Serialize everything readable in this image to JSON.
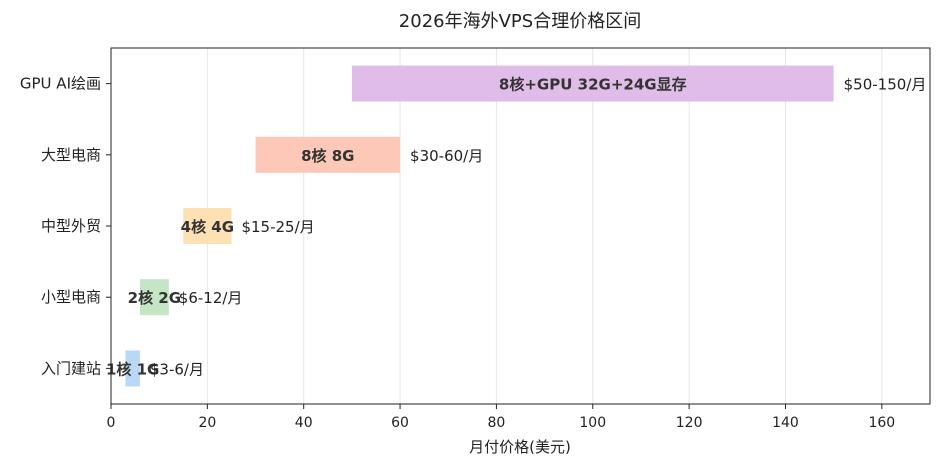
{
  "chart_data": {
    "type": "bar",
    "orientation": "horizontal-range",
    "title": "2026年海外VPS合理价格区间",
    "xlabel": "月付价格(美元)",
    "ylabel": "",
    "xlim": [
      0,
      170
    ],
    "xticks": [
      0,
      20,
      40,
      60,
      80,
      100,
      120,
      140,
      160
    ],
    "grid": "vertical",
    "categories": [
      "入门建站",
      "小型电商",
      "中型外贸",
      "大型电商",
      "GPU AI绘画"
    ],
    "ranges": [
      {
        "category": "入门建站",
        "min": 3,
        "max": 6,
        "spec": "1核 1G",
        "price": "$3-6/月",
        "color": "#b8d8f4"
      },
      {
        "category": "小型电商",
        "min": 6,
        "max": 12,
        "spec": "2核 2G",
        "price": "$6-12/月",
        "color": "#c4e6c4"
      },
      {
        "category": "中型外贸",
        "min": 15,
        "max": 25,
        "spec": "4核 4G",
        "price": "$15-25/月",
        "color": "#fde0b4"
      },
      {
        "category": "大型电商",
        "min": 30,
        "max": 60,
        "spec": "8核 8G",
        "price": "$30-60/月",
        "color": "#fdc8b8"
      },
      {
        "category": "GPU AI绘画",
        "min": 50,
        "max": 150,
        "spec": "8核+GPU 32G+24G显存",
        "price": "$50-150/月",
        "color": "#e0bde8"
      }
    ]
  }
}
